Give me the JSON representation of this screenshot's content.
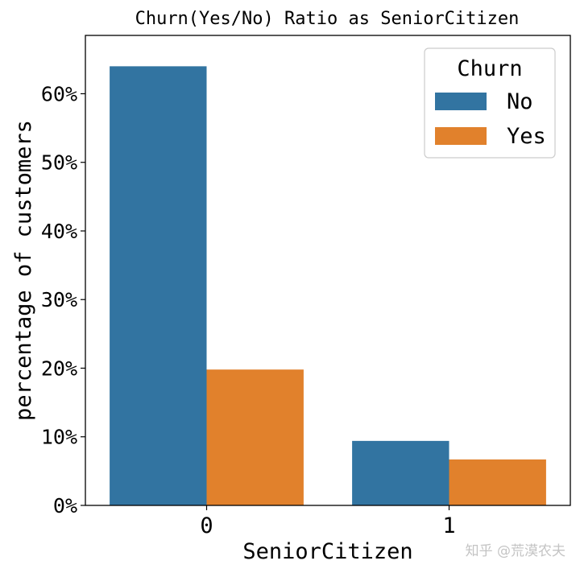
{
  "chart_data": {
    "type": "bar",
    "title": "Churn(Yes/No) Ratio as SeniorCitizen",
    "xlabel": "SeniorCitizen",
    "ylabel": "percentage of customers",
    "categories": [
      "0",
      "1"
    ],
    "series": [
      {
        "name": "No",
        "values": [
          64.0,
          9.4
        ],
        "color": "#3274a1"
      },
      {
        "name": "Yes",
        "values": [
          19.8,
          6.7
        ],
        "color": "#e1812c"
      }
    ],
    "ylim": [
      0,
      68.5
    ],
    "yticks": [
      0,
      10,
      20,
      30,
      40,
      50,
      60
    ],
    "ytick_labels": [
      "0%",
      "10%",
      "20%",
      "30%",
      "40%",
      "50%",
      "60%"
    ],
    "legend": {
      "title": "Churn",
      "position": "top-right"
    },
    "grid": false
  },
  "watermark": "知乎 @荒漠农夫"
}
